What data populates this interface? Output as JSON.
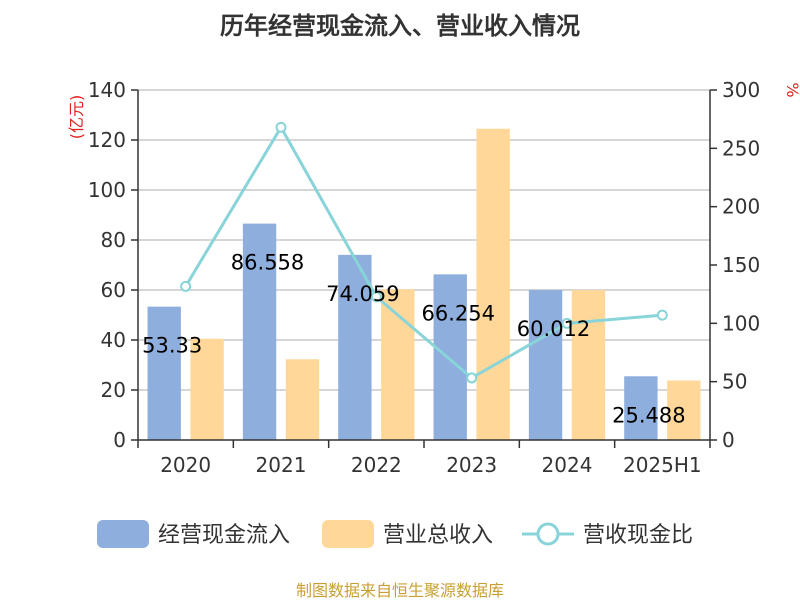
{
  "chart_data": {
    "type": "bar",
    "title": "历年经营现金流入、营业收入情况",
    "categories": [
      "2020",
      "2021",
      "2022",
      "2023",
      "2024",
      "2025H1"
    ],
    "y_left_unit": "(亿元)",
    "y_right_unit": "%",
    "ylim_left": [
      0,
      140
    ],
    "ylim_right": [
      0,
      300
    ],
    "yticks_left": [
      0,
      20,
      40,
      60,
      80,
      100,
      120,
      140
    ],
    "yticks_right": [
      0,
      50,
      100,
      150,
      200,
      250,
      300
    ],
    "series": [
      {
        "name": "经营现金流入",
        "type": "bar",
        "axis": "left",
        "color": "#8eaedd",
        "values": [
          53.332,
          86.558,
          74.059,
          66.254,
          60.012,
          25.488
        ],
        "labels": [
          "53.33",
          "86.558",
          "74.059",
          "66.254",
          "60.012",
          "25.488"
        ]
      },
      {
        "name": "营业总收入",
        "type": "bar",
        "axis": "left",
        "color": "#ffd899",
        "values": [
          40.5,
          32.3,
          60.3,
          124.5,
          60.0,
          23.8
        ]
      },
      {
        "name": "营收现金比",
        "type": "line",
        "axis": "right",
        "color": "#88d4d8",
        "values": [
          131.7,
          268.0,
          122.8,
          53.2,
          100.0,
          107.0
        ]
      }
    ],
    "grid": true,
    "legend_position": "bottom"
  },
  "source": "制图数据来自恒生聚源数据库"
}
